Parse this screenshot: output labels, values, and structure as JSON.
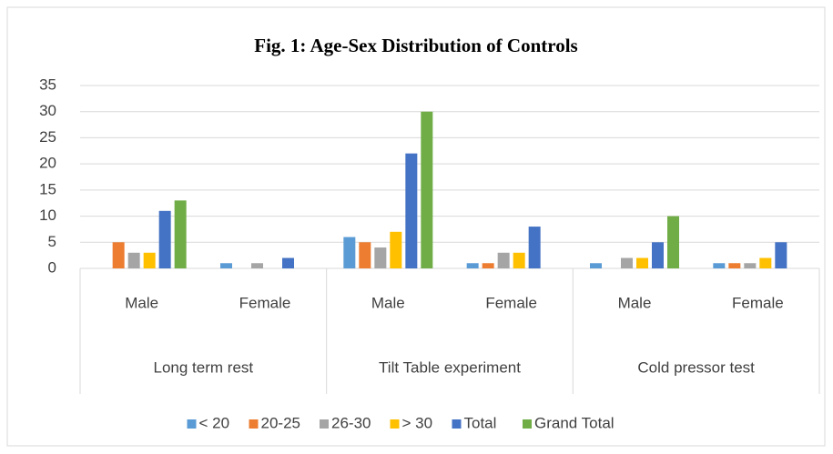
{
  "chart_data": {
    "type": "bar",
    "title": "Fig. 1: Age-Sex Distribution of Controls",
    "categories": [
      "Male",
      "Female",
      "Male",
      "Female",
      "Male",
      "Female"
    ],
    "groups": [
      "Long term rest",
      "Tilt Table experiment",
      "Cold pressor test"
    ],
    "series": [
      {
        "name": "< 20",
        "color": "#5b9bd5",
        "values": [
          0,
          1,
          6,
          1,
          1,
          1
        ]
      },
      {
        "name": "20-25",
        "color": "#ed7d31",
        "values": [
          5,
          0,
          5,
          1,
          0,
          1
        ]
      },
      {
        "name": "26-30",
        "color": "#a5a5a5",
        "values": [
          3,
          1,
          4,
          3,
          2,
          1
        ]
      },
      {
        "name": "> 30",
        "color": "#ffc000",
        "values": [
          3,
          0,
          7,
          3,
          2,
          2
        ]
      },
      {
        "name": "Total",
        "color": "#4472c4",
        "values": [
          11,
          2,
          22,
          8,
          5,
          5
        ]
      },
      {
        "name": "Grand Total",
        "color": "#70ad47",
        "values": [
          13,
          null,
          30,
          null,
          10,
          null
        ]
      }
    ],
    "ylim": [
      0,
      35
    ],
    "yticks": [
      0,
      5,
      10,
      15,
      20,
      25,
      30,
      35
    ],
    "grid": true,
    "legend": "bottom"
  }
}
